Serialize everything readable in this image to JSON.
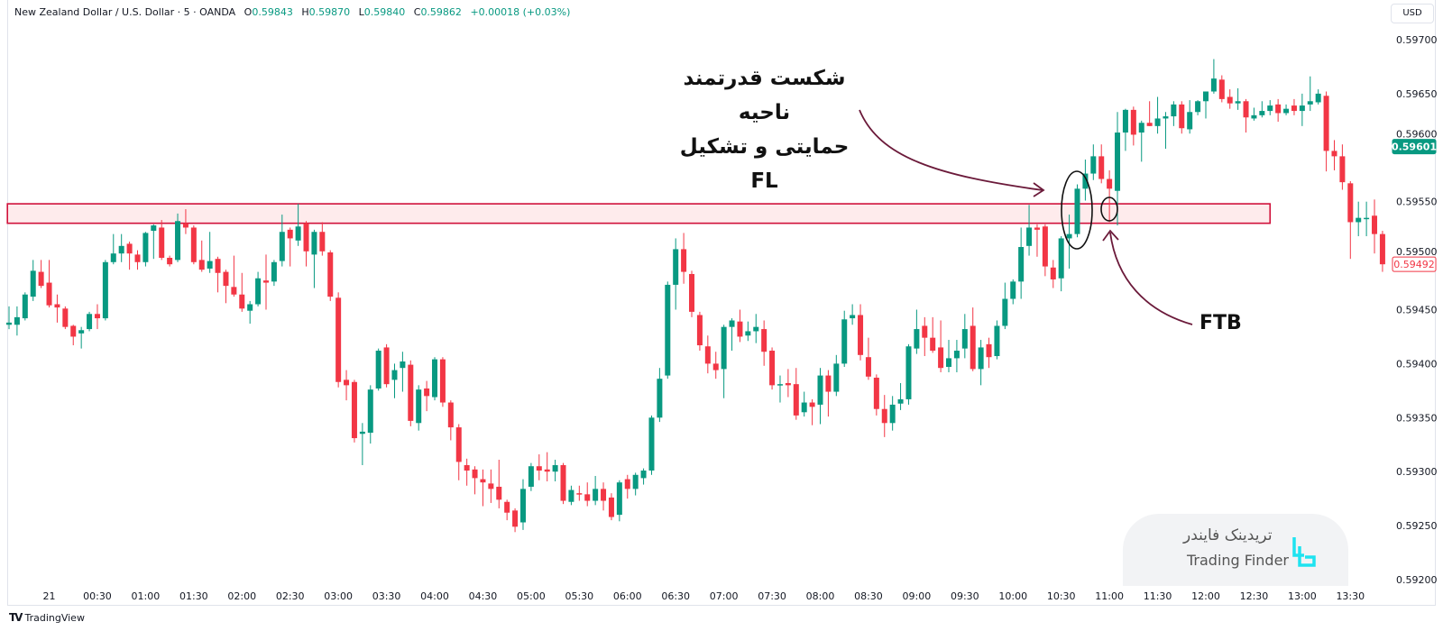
{
  "header": {
    "symbol": "New Zealand Dollar / U.S. Dollar · 5 · OANDA",
    "o_label": "O",
    "o_value": "0.59843",
    "h_label": "H",
    "h_value": "0.59870",
    "l_label": "L",
    "l_value": "0.59840",
    "c_label": "C",
    "c_value": "0.59862",
    "change": "+0.00018 (+0.03%)"
  },
  "currency": "USD",
  "footer": {
    "brand": "TradingView"
  },
  "watermark": {
    "fa": "تریدینک فایندر",
    "en": "Trading Finder"
  },
  "annotations": {
    "breakout_line1": "شکست قدرتمند ناحیه",
    "breakout_line2": "حمایتی و تشکیل FL",
    "ftb": "FTB"
  },
  "colors": {
    "up": "#089981",
    "down": "#f23645",
    "zone": "#d0103a",
    "arrow": "#6b1a3a",
    "brand": "#1ee3f0"
  },
  "chart_data": {
    "type": "candlestick",
    "title": "New Zealand Dollar / U.S. Dollar · 5 · OANDA",
    "ylim": [
      0.592,
      0.597
    ],
    "y_ticks": [
      "0.59700",
      "0.59650",
      "0.59600",
      "0.59550",
      "0.59500",
      "0.59450",
      "0.59400",
      "0.59350",
      "0.59300",
      "0.59250",
      "0.59200"
    ],
    "y_tick_values": [
      0.597,
      0.5965,
      0.596,
      0.5955,
      0.595,
      0.5945,
      0.594,
      0.5935,
      0.593,
      0.5925,
      0.592
    ],
    "x_ticks": [
      "21",
      "00:30",
      "01:00",
      "01:30",
      "02:00",
      "02:30",
      "03:00",
      "03:30",
      "04:00",
      "04:30",
      "05:00",
      "05:30",
      "06:00",
      "06:30",
      "07:00",
      "07:30",
      "08:00",
      "08:30",
      "09:00",
      "09:30",
      "10:00",
      "10:30",
      "11:00",
      "11:30",
      "12:00",
      "12:30",
      "13:00",
      "13:30"
    ],
    "first_candle_time": "23:35",
    "interval_minutes": 5,
    "price_badges": [
      {
        "label": "0.59601",
        "value": 0.59601,
        "style": "filled-green"
      },
      {
        "label": "0.59492",
        "value": 0.59492,
        "style": "outlined-red"
      }
    ],
    "zone": {
      "low": 0.5953,
      "high": 0.59548,
      "start_index": -0.2,
      "end_index": 157
    },
    "candles_format": [
      "open",
      "high",
      "low",
      "close"
    ],
    "candles": [
      [
        0.59436,
        0.59453,
        0.59432,
        0.59438
      ],
      [
        0.59436,
        0.59453,
        0.59426,
        0.59443
      ],
      [
        0.59442,
        0.59466,
        0.5944,
        0.59464
      ],
      [
        0.59462,
        0.59496,
        0.59458,
        0.59486
      ],
      [
        0.59485,
        0.59496,
        0.5947,
        0.59472
      ],
      [
        0.59475,
        0.59496,
        0.59452,
        0.59454
      ],
      [
        0.59455,
        0.59464,
        0.59438,
        0.59452
      ],
      [
        0.59451,
        0.59453,
        0.59432,
        0.59434
      ],
      [
        0.59435,
        0.59436,
        0.59417,
        0.59425
      ],
      [
        0.59428,
        0.59434,
        0.59414,
        0.59431
      ],
      [
        0.59432,
        0.59448,
        0.5943,
        0.59446
      ],
      [
        0.59446,
        0.59455,
        0.59432,
        0.59442
      ],
      [
        0.59442,
        0.59496,
        0.5944,
        0.59494
      ],
      [
        0.59494,
        0.5952,
        0.59492,
        0.59502
      ],
      [
        0.59502,
        0.5952,
        0.59494,
        0.59509
      ],
      [
        0.59511,
        0.59513,
        0.59487,
        0.59502
      ],
      [
        0.59501,
        0.59505,
        0.59487,
        0.59494
      ],
      [
        0.59494,
        0.59522,
        0.5949,
        0.59521
      ],
      [
        0.59523,
        0.59529,
        0.59497,
        0.59528
      ],
      [
        0.59526,
        0.59533,
        0.59496,
        0.59498
      ],
      [
        0.59498,
        0.595,
        0.5949,
        0.59492
      ],
      [
        0.59496,
        0.59539,
        0.59494,
        0.59532
      ],
      [
        0.5953,
        0.59543,
        0.5952,
        0.59526
      ],
      [
        0.59526,
        0.59528,
        0.59492,
        0.59494
      ],
      [
        0.59496,
        0.59514,
        0.59485,
        0.59487
      ],
      [
        0.59488,
        0.59522,
        0.59484,
        0.59495
      ],
      [
        0.59497,
        0.59499,
        0.59466,
        0.59484
      ],
      [
        0.59485,
        0.59487,
        0.59456,
        0.59472
      ],
      [
        0.59471,
        0.595,
        0.59462,
        0.59464
      ],
      [
        0.59464,
        0.59484,
        0.59448,
        0.59451
      ],
      [
        0.59449,
        0.59458,
        0.59437,
        0.59455
      ],
      [
        0.59455,
        0.59485,
        0.59453,
        0.59479
      ],
      [
        0.59477,
        0.59501,
        0.5945,
        0.59475
      ],
      [
        0.59476,
        0.59496,
        0.59472,
        0.59494
      ],
      [
        0.59495,
        0.59538,
        0.5949,
        0.59522
      ],
      [
        0.59524,
        0.59526,
        0.5949,
        0.59516
      ],
      [
        0.59514,
        0.59548,
        0.59509,
        0.59527
      ],
      [
        0.5953,
        0.59532,
        0.5949,
        0.59504
      ],
      [
        0.59501,
        0.59524,
        0.5947,
        0.59522
      ],
      [
        0.59522,
        0.59531,
        0.595,
        0.59504
      ],
      [
        0.59503,
        0.59505,
        0.59458,
        0.59462
      ],
      [
        0.59461,
        0.59466,
        0.59378,
        0.59383
      ],
      [
        0.59385,
        0.59394,
        0.59366,
        0.5938
      ],
      [
        0.59383,
        0.59385,
        0.59327,
        0.59331
      ],
      [
        0.59335,
        0.59345,
        0.59306,
        0.59337
      ],
      [
        0.59336,
        0.5938,
        0.59326,
        0.59376
      ],
      [
        0.59377,
        0.59414,
        0.59375,
        0.59412
      ],
      [
        0.59415,
        0.59418,
        0.59378,
        0.59381
      ],
      [
        0.59385,
        0.594,
        0.59368,
        0.59394
      ],
      [
        0.59396,
        0.59411,
        0.59374,
        0.59402
      ],
      [
        0.59399,
        0.59403,
        0.59342,
        0.59347
      ],
      [
        0.59345,
        0.5938,
        0.59338,
        0.59376
      ],
      [
        0.59377,
        0.59384,
        0.59356,
        0.5937
      ],
      [
        0.59369,
        0.59406,
        0.59366,
        0.59404
      ],
      [
        0.59404,
        0.59406,
        0.5936,
        0.59364
      ],
      [
        0.59364,
        0.59366,
        0.59329,
        0.59341
      ],
      [
        0.59341,
        0.59344,
        0.59292,
        0.59309
      ],
      [
        0.59306,
        0.59312,
        0.59287,
        0.59301
      ],
      [
        0.59302,
        0.59305,
        0.59279,
        0.59294
      ],
      [
        0.59293,
        0.59302,
        0.59268,
        0.5929
      ],
      [
        0.59289,
        0.59302,
        0.59271,
        0.59284
      ],
      [
        0.59286,
        0.59311,
        0.59266,
        0.59274
      ],
      [
        0.59272,
        0.59274,
        0.59255,
        0.59262
      ],
      [
        0.59264,
        0.59266,
        0.59244,
        0.59249
      ],
      [
        0.59253,
        0.59293,
        0.59246,
        0.59284
      ],
      [
        0.59286,
        0.59308,
        0.59282,
        0.59305
      ],
      [
        0.59305,
        0.59316,
        0.59292,
        0.59301
      ],
      [
        0.59302,
        0.59318,
        0.59291,
        0.593
      ],
      [
        0.593,
        0.59311,
        0.59291,
        0.59306
      ],
      [
        0.59306,
        0.59308,
        0.5927,
        0.59273
      ],
      [
        0.59272,
        0.59287,
        0.59269,
        0.59283
      ],
      [
        0.5928,
        0.59287,
        0.59273,
        0.59279
      ],
      [
        0.59279,
        0.5929,
        0.59268,
        0.59273
      ],
      [
        0.59273,
        0.59296,
        0.59269,
        0.59284
      ],
      [
        0.59284,
        0.5929,
        0.59264,
        0.59273
      ],
      [
        0.59276,
        0.5928,
        0.59255,
        0.59258
      ],
      [
        0.5926,
        0.59292,
        0.59254,
        0.5929
      ],
      [
        0.59293,
        0.59297,
        0.59275,
        0.59284
      ],
      [
        0.59284,
        0.59299,
        0.59278,
        0.59297
      ],
      [
        0.59294,
        0.59303,
        0.59288,
        0.59301
      ],
      [
        0.59301,
        0.59352,
        0.59297,
        0.5935
      ],
      [
        0.5935,
        0.59396,
        0.59346,
        0.59386
      ],
      [
        0.59389,
        0.59476,
        0.59386,
        0.59473
      ],
      [
        0.59473,
        0.59516,
        0.5945,
        0.59506
      ],
      [
        0.59506,
        0.59521,
        0.59474,
        0.59485
      ],
      [
        0.59483,
        0.59486,
        0.59443,
        0.59448
      ],
      [
        0.59445,
        0.59448,
        0.59412,
        0.59417
      ],
      [
        0.59416,
        0.59426,
        0.59391,
        0.594
      ],
      [
        0.594,
        0.59411,
        0.59386,
        0.59394
      ],
      [
        0.59395,
        0.59436,
        0.59368,
        0.59434
      ],
      [
        0.59434,
        0.59442,
        0.59412,
        0.5944
      ],
      [
        0.59439,
        0.5945,
        0.5942,
        0.59425
      ],
      [
        0.59426,
        0.59439,
        0.59421,
        0.5943
      ],
      [
        0.5943,
        0.59446,
        0.59419,
        0.59434
      ],
      [
        0.59432,
        0.5944,
        0.59398,
        0.59411
      ],
      [
        0.59412,
        0.59415,
        0.59376,
        0.5938
      ],
      [
        0.5938,
        0.59389,
        0.59364,
        0.59381
      ],
      [
        0.59382,
        0.59395,
        0.59369,
        0.5938
      ],
      [
        0.59381,
        0.59396,
        0.59348,
        0.59352
      ],
      [
        0.59355,
        0.59374,
        0.59351,
        0.59364
      ],
      [
        0.59364,
        0.59367,
        0.59343,
        0.5936
      ],
      [
        0.59362,
        0.59396,
        0.59344,
        0.59389
      ],
      [
        0.59389,
        0.59394,
        0.59351,
        0.59374
      ],
      [
        0.59374,
        0.59408,
        0.5937,
        0.594
      ],
      [
        0.594,
        0.59449,
        0.59397,
        0.59441
      ],
      [
        0.59442,
        0.59455,
        0.59436,
        0.59445
      ],
      [
        0.59445,
        0.59455,
        0.59403,
        0.59408
      ],
      [
        0.59406,
        0.59424,
        0.59385,
        0.59388
      ],
      [
        0.59387,
        0.5939,
        0.59352,
        0.59358
      ],
      [
        0.59358,
        0.59371,
        0.59332,
        0.59345
      ],
      [
        0.59345,
        0.5937,
        0.59338,
        0.59362
      ],
      [
        0.59363,
        0.59382,
        0.59357,
        0.59367
      ],
      [
        0.59367,
        0.59418,
        0.59362,
        0.59416
      ],
      [
        0.59414,
        0.5945,
        0.59409,
        0.59432
      ],
      [
        0.59435,
        0.59443,
        0.59407,
        0.59424
      ],
      [
        0.59424,
        0.59443,
        0.5941,
        0.59412
      ],
      [
        0.59415,
        0.5944,
        0.59392,
        0.59396
      ],
      [
        0.59397,
        0.59422,
        0.59392,
        0.59405
      ],
      [
        0.59405,
        0.59422,
        0.59392,
        0.59412
      ],
      [
        0.59414,
        0.59446,
        0.59405,
        0.59432
      ],
      [
        0.59435,
        0.59452,
        0.59393,
        0.59395
      ],
      [
        0.59395,
        0.59422,
        0.5938,
        0.59415
      ],
      [
        0.59418,
        0.59424,
        0.59396,
        0.59406
      ],
      [
        0.59407,
        0.5944,
        0.59404,
        0.59435
      ],
      [
        0.59435,
        0.59475,
        0.59432,
        0.5946
      ],
      [
        0.5946,
        0.59478,
        0.59455,
        0.59476
      ],
      [
        0.59476,
        0.59526,
        0.5946,
        0.59508
      ],
      [
        0.59509,
        0.59547,
        0.595,
        0.59526
      ],
      [
        0.59526,
        0.59529,
        0.59499,
        0.59524
      ],
      [
        0.59527,
        0.59529,
        0.59481,
        0.5949
      ],
      [
        0.59489,
        0.59496,
        0.5947,
        0.59478
      ],
      [
        0.59479,
        0.59518,
        0.59467,
        0.59516
      ],
      [
        0.59516,
        0.59538,
        0.59488,
        0.5952
      ],
      [
        0.5952,
        0.59566,
        0.59517,
        0.59562
      ],
      [
        0.59562,
        0.59589,
        0.59551,
        0.59576
      ],
      [
        0.59576,
        0.59603,
        0.5957,
        0.59592
      ],
      [
        0.59592,
        0.59603,
        0.59567,
        0.59571
      ],
      [
        0.59571,
        0.59579,
        0.59531,
        0.59562
      ],
      [
        0.5956,
        0.59633,
        0.59528,
        0.59614
      ],
      [
        0.59614,
        0.59636,
        0.59597,
        0.59635
      ],
      [
        0.59635,
        0.59638,
        0.59602,
        0.59612
      ],
      [
        0.59614,
        0.59625,
        0.59587,
        0.59623
      ],
      [
        0.59623,
        0.59643,
        0.5962,
        0.5962
      ],
      [
        0.5962,
        0.59647,
        0.59613,
        0.59627
      ],
      [
        0.59627,
        0.59633,
        0.59599,
        0.59629
      ],
      [
        0.59629,
        0.59643,
        0.5962,
        0.5964
      ],
      [
        0.5964,
        0.59643,
        0.59613,
        0.59618
      ],
      [
        0.59617,
        0.59644,
        0.59613,
        0.59633
      ],
      [
        0.59633,
        0.59644,
        0.5963,
        0.59643
      ],
      [
        0.59643,
        0.59652,
        0.59627,
        0.59652
      ],
      [
        0.59652,
        0.59682,
        0.5965,
        0.59664
      ],
      [
        0.59663,
        0.59667,
        0.59642,
        0.59645
      ],
      [
        0.59647,
        0.59654,
        0.59636,
        0.59641
      ],
      [
        0.59641,
        0.59655,
        0.59635,
        0.59643
      ],
      [
        0.59643,
        0.59645,
        0.59614,
        0.59628
      ],
      [
        0.59627,
        0.59637,
        0.59625,
        0.5963
      ],
      [
        0.5963,
        0.59643,
        0.59628,
        0.59634
      ],
      [
        0.59634,
        0.59644,
        0.5963,
        0.59639
      ],
      [
        0.5964,
        0.59645,
        0.59624,
        0.59632
      ],
      [
        0.59632,
        0.5964,
        0.5963,
        0.59636
      ],
      [
        0.59639,
        0.59645,
        0.5963,
        0.59634
      ],
      [
        0.59634,
        0.5965,
        0.5962,
        0.59639
      ],
      [
        0.5964,
        0.59666,
        0.59634,
        0.59643
      ],
      [
        0.59642,
        0.59654,
        0.5964,
        0.5965
      ],
      [
        0.59648,
        0.59652,
        0.59578,
        0.59597
      ],
      [
        0.59597,
        0.59607,
        0.59579,
        0.59592
      ],
      [
        0.59592,
        0.59603,
        0.59561,
        0.59568
      ],
      [
        0.59567,
        0.59569,
        0.59497,
        0.59531
      ],
      [
        0.59531,
        0.5955,
        0.59518,
        0.59535
      ],
      [
        0.59534,
        0.5955,
        0.59518,
        0.59535
      ],
      [
        0.59537,
        0.59552,
        0.59502,
        0.5952
      ],
      [
        0.5952,
        0.59523,
        0.59485,
        0.59492
      ]
    ]
  }
}
